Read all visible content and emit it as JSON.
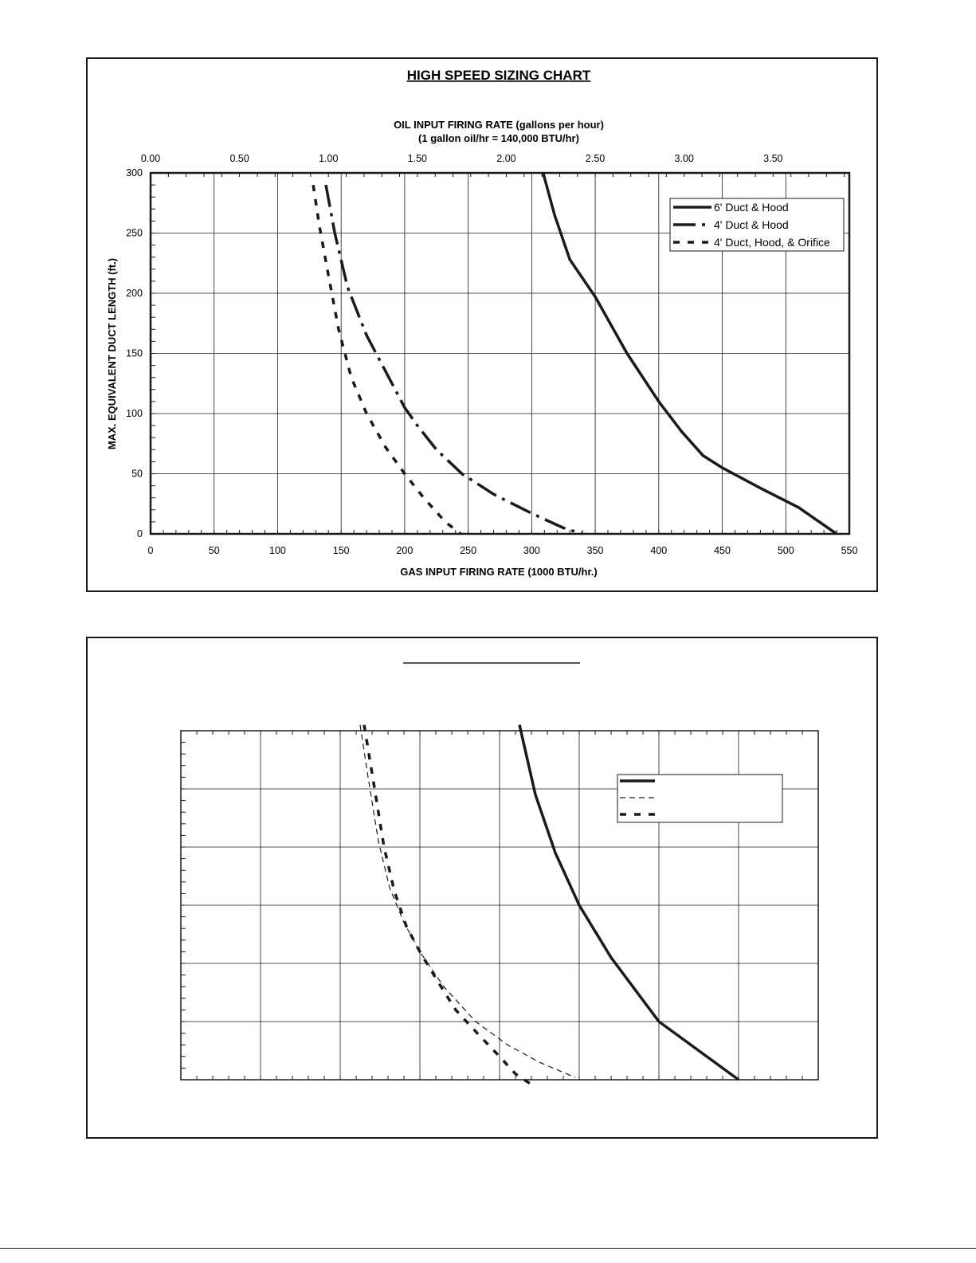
{
  "chart_data": [
    {
      "type": "line",
      "title": "HIGH SPEED SIZING CHART",
      "xlabel": "GAS INPUT FIRING RATE (1000 BTU/hr.)",
      "ylabel": "MAX. EQUIVALENT DUCT LENGTH (ft.)",
      "x2label_line1": "OIL INPUT FIRING RATE (gallons per hour)",
      "x2label_line2": "(1 gallon oil/hr = 140,000 BTU/hr)",
      "xlim": [
        0,
        550
      ],
      "ylim": [
        0,
        300
      ],
      "x_ticks": [
        "0",
        "50",
        "100",
        "150",
        "200",
        "250",
        "300",
        "350",
        "400",
        "450",
        "500",
        "550"
      ],
      "y_ticks": [
        "0",
        "50",
        "100",
        "150",
        "200",
        "250",
        "300"
      ],
      "x2_ticks": [
        "0.00",
        "0.50",
        "1.00",
        "1.50",
        "2.00",
        "2.50",
        "3.00",
        "3.50"
      ],
      "x2_per_gph": 140,
      "grid": true,
      "legend_position": "top-right",
      "series": [
        {
          "name": "6' Duct & Hood",
          "style": "solid",
          "x": [
            309,
            318,
            330,
            350,
            375,
            400,
            418,
            435,
            450,
            480,
            510,
            540
          ],
          "y": [
            300,
            265,
            228,
            197,
            150,
            110,
            85,
            65,
            55,
            38,
            22,
            0
          ]
        },
        {
          "name": "4' Duct & Hood",
          "style": "longdash",
          "x": [
            138,
            145,
            155,
            170,
            190,
            200,
            210,
            225,
            245,
            270,
            300,
            325,
            340
          ],
          "y": [
            290,
            250,
            205,
            165,
            125,
            105,
            90,
            70,
            50,
            33,
            17,
            5,
            0
          ]
        },
        {
          "name": "4' Duct, Hood, & Orifice",
          "style": "shortdash",
          "x": [
            128,
            133,
            140,
            148,
            158,
            170,
            185,
            200,
            215,
            232,
            244
          ],
          "y": [
            290,
            255,
            215,
            170,
            130,
            100,
            72,
            50,
            30,
            10,
            0
          ]
        }
      ]
    },
    {
      "type": "line",
      "title": "",
      "xlim": [
        0,
        800
      ],
      "ylim": [
        0,
        300
      ],
      "grid": true,
      "legend_position": "top-right",
      "series": [
        {
          "style": "solid",
          "x": [
            425,
            445,
            470,
            500,
            540,
            600,
            650,
            700
          ],
          "y": [
            305,
            245,
            195,
            150,
            105,
            50,
            25,
            0
          ]
        },
        {
          "style": "thindash",
          "x": [
            225,
            235,
            248,
            262,
            280,
            300,
            330,
            370,
            410,
            450,
            495
          ],
          "y": [
            305,
            260,
            205,
            165,
            135,
            110,
            80,
            50,
            30,
            15,
            2
          ]
        },
        {
          "style": "shortdash",
          "x": [
            230,
            242,
            255,
            268,
            283,
            300,
            322,
            345,
            372,
            400,
            420,
            442
          ],
          "y": [
            305,
            255,
            200,
            162,
            132,
            110,
            85,
            60,
            40,
            20,
            5,
            -5
          ]
        }
      ]
    }
  ]
}
